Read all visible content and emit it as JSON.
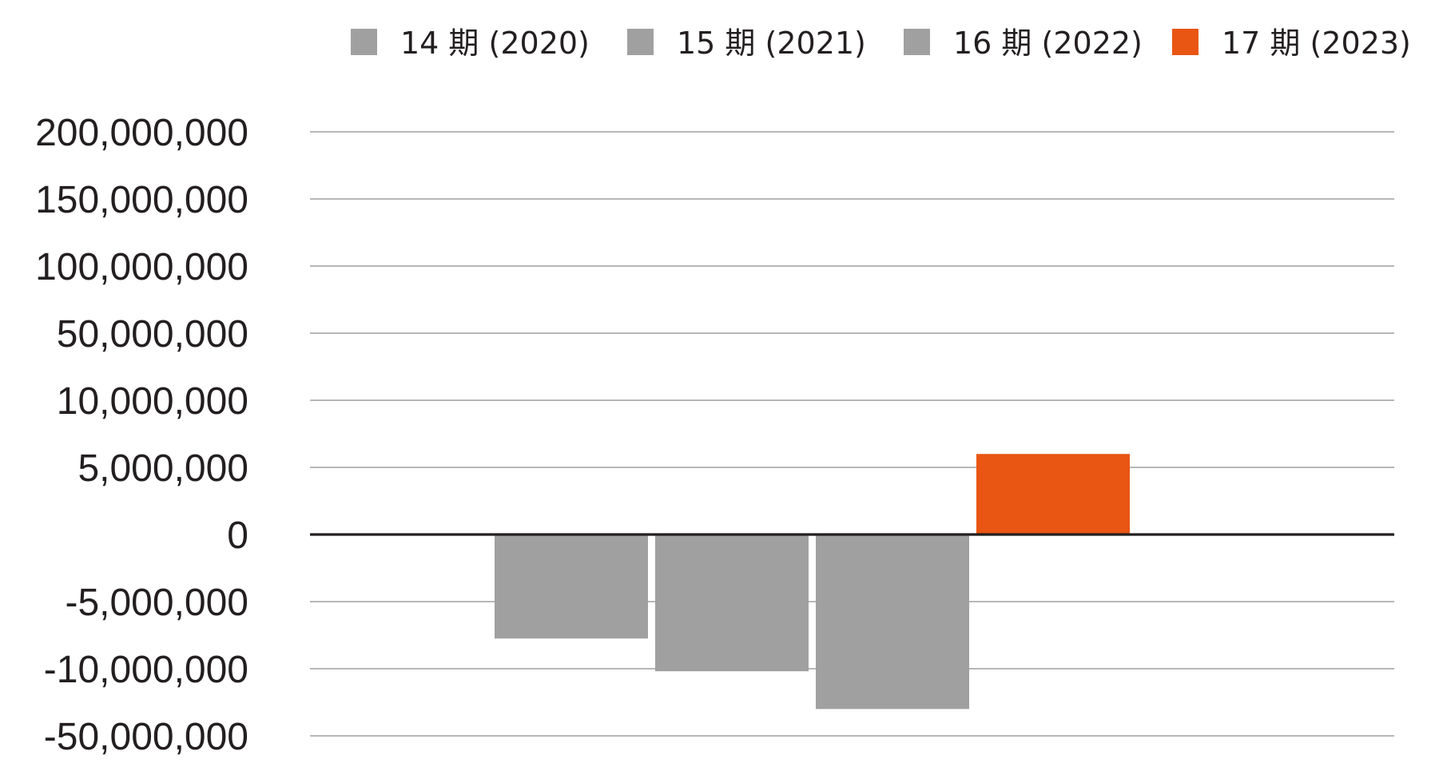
{
  "chart_data": {
    "type": "bar",
    "title": "",
    "xlabel": "",
    "ylabel": "",
    "y_ticks": [
      "200,000,000",
      "150,000,000",
      "100,000,000",
      "50,000,000",
      "10,000,000",
      "5,000,000",
      "0",
      "-5,000,000",
      "-10,000,000",
      "-50,000,000"
    ],
    "y_scale": "non-linear (tick labels unevenly spaced in value, evenly spaced on axis)",
    "grid": true,
    "legend_position": "top",
    "series": [
      {
        "name": "14 期 (2020)",
        "value": -7750000,
        "color": "#a0a0a0"
      },
      {
        "name": "15 期 (2021)",
        "value": -11500000,
        "color": "#a0a0a0"
      },
      {
        "name": "16 期 (2022)",
        "value": -34000000,
        "color": "#a0a0a0"
      },
      {
        "name": "17 期 (2023)",
        "value": 6000000,
        "color": "#e95513"
      }
    ]
  }
}
